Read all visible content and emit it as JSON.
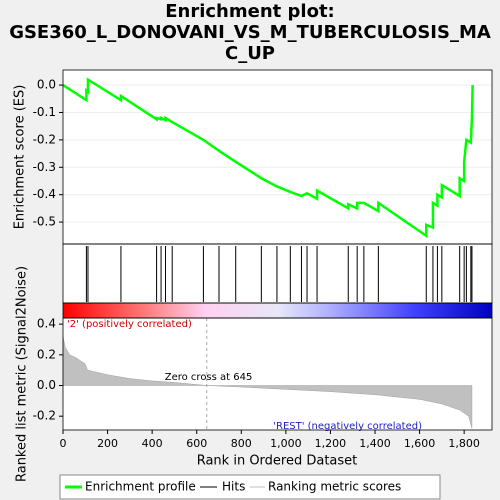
{
  "chart_data": {
    "type": "line",
    "title_lines": [
      "Enrichment plot:",
      "GSE360_L_DONOVANI_VS_M_TUBERCULOSIS_MA",
      "C_UP"
    ],
    "xlabel": "Rank in Ordered Dataset",
    "xlim": [
      0,
      1925
    ],
    "xticks": [
      0,
      200,
      400,
      600,
      800,
      {
        "value": 1000,
        "label": "1,000"
      },
      {
        "value": 1200,
        "label": "1,200"
      },
      {
        "value": 1400,
        "label": "1,400"
      },
      {
        "value": 1600,
        "label": "1,600"
      },
      {
        "value": 1800,
        "label": "1,800"
      }
    ],
    "es": {
      "ylabel": "Enrichment score (ES)",
      "color": "#00ff00",
      "ylim": [
        -0.58,
        0.055
      ],
      "yticks": [
        {
          "value": 0,
          "label": "0.0"
        },
        -0.1,
        -0.2,
        -0.3,
        -0.4,
        -0.5
      ],
      "x": [
        0,
        105,
        105,
        112,
        112,
        260,
        260,
        420,
        420,
        440,
        440,
        460,
        460,
        490,
        630,
        700,
        775,
        890,
        960,
        1020,
        1070,
        1095,
        1140,
        1140,
        1280,
        1280,
        1320,
        1320,
        1350,
        1415,
        1415,
        1630,
        1630,
        1660,
        1660,
        1680,
        1680,
        1700,
        1700,
        1780,
        1780,
        1800,
        1800,
        1810,
        1830,
        1835,
        1838
      ],
      "values": [
        0,
        -0.055,
        -0.02,
        -0.025,
        0.02,
        -0.055,
        -0.04,
        -0.125,
        -0.12,
        -0.125,
        -0.12,
        -0.128,
        -0.12,
        -0.135,
        -0.2,
        -0.24,
        -0.28,
        -0.34,
        -0.37,
        -0.39,
        -0.405,
        -0.395,
        -0.415,
        -0.385,
        -0.45,
        -0.435,
        -0.45,
        -0.43,
        -0.43,
        -0.46,
        -0.43,
        -0.55,
        -0.51,
        -0.52,
        -0.43,
        -0.44,
        -0.4,
        -0.41,
        -0.365,
        -0.405,
        -0.34,
        -0.35,
        -0.28,
        -0.2,
        -0.21,
        -0.12,
        0.0
      ]
    },
    "hits": [
      105,
      112,
      260,
      420,
      440,
      460,
      490,
      630,
      700,
      775,
      890,
      960,
      1020,
      1070,
      1095,
      1140,
      1280,
      1320,
      1350,
      1415,
      1630,
      1660,
      1680,
      1700,
      1780,
      1800,
      1810,
      1830,
      1835
    ],
    "metric": {
      "ylabel": "Ranked list metric (Signal2Noise)",
      "color": "#c0c0c0",
      "ylim": [
        -0.29,
        0.44
      ],
      "yticks": [
        0.4,
        0.2,
        {
          "value": 0,
          "label": "0.0"
        },
        -0.2
      ],
      "x": [
        0,
        10,
        30,
        60,
        100,
        110,
        200,
        300,
        400,
        500,
        645,
        800,
        1000,
        1200,
        1400,
        1600,
        1700,
        1780,
        1820,
        1835
      ],
      "values": [
        0.32,
        0.25,
        0.2,
        0.18,
        0.14,
        0.1,
        0.07,
        0.045,
        0.03,
        0.02,
        0,
        -0.01,
        -0.025,
        -0.04,
        -0.06,
        -0.09,
        -0.12,
        -0.16,
        -0.2,
        -0.28
      ],
      "zero_cross": 645,
      "zero_cross_label": "Zero cross at 645",
      "pos_label": "'2' (positively correlated)",
      "neg_label": "'REST' (negatively correlated)"
    },
    "legend": [
      "Enrichment profile",
      "Hits",
      "Ranking metric scores"
    ]
  }
}
